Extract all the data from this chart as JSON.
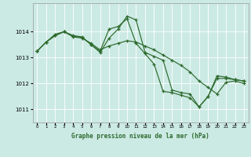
{
  "title": "Graphe pression niveau de la mer (hPa)",
  "bg_color": "#cceae4",
  "line_color": "#2d6a2d",
  "grid_color": "#ffffff",
  "xlim": [
    -0.5,
    23.5
  ],
  "ylim": [
    1010.5,
    1015.1
  ],
  "yticks": [
    1011,
    1012,
    1013,
    1014
  ],
  "xtick_labels": [
    "0",
    "1",
    "2",
    "3",
    "4",
    "5",
    "6",
    "7",
    "8",
    "9",
    "10",
    "11",
    "12",
    "13",
    "14",
    "15",
    "16",
    "17",
    "18",
    "19",
    "20",
    "21",
    "22",
    "23"
  ],
  "series1_x": [
    0,
    1,
    2,
    3,
    4,
    5,
    6,
    7,
    8,
    9,
    10,
    11,
    12,
    13,
    14,
    15,
    16,
    17,
    18,
    19,
    20,
    21,
    22,
    23
  ],
  "series1_y": [
    1013.25,
    1013.6,
    1013.85,
    1014.0,
    1013.85,
    1013.8,
    1013.5,
    1013.25,
    1014.1,
    1014.2,
    1014.5,
    1013.55,
    1013.15,
    1012.75,
    1011.7,
    1011.65,
    1011.55,
    1011.45,
    1011.1,
    1011.5,
    1012.2,
    1012.2,
    1012.15,
    1012.1
  ],
  "series2_x": [
    0,
    1,
    2,
    3,
    4,
    5,
    6,
    7,
    8,
    9,
    10,
    11,
    12,
    13,
    14,
    15,
    16,
    17,
    18,
    19,
    20,
    21,
    22,
    23
  ],
  "series2_y": [
    1013.25,
    1013.6,
    1013.9,
    1014.0,
    1013.82,
    1013.78,
    1013.5,
    1013.2,
    1013.75,
    1014.1,
    1014.6,
    1014.45,
    1013.2,
    1013.05,
    1012.9,
    1011.75,
    1011.65,
    1011.6,
    1011.1,
    1011.5,
    1012.3,
    1012.25,
    1012.15,
    1012.1
  ],
  "series3_x": [
    0,
    1,
    2,
    3,
    4,
    5,
    6,
    7,
    8,
    9,
    10,
    11,
    12,
    13,
    14,
    15,
    16,
    17,
    18,
    19,
    20,
    21,
    22,
    23
  ],
  "series3_y": [
    1013.25,
    1013.6,
    1013.85,
    1014.0,
    1013.8,
    1013.75,
    1013.55,
    1013.3,
    1013.45,
    1013.55,
    1013.65,
    1013.6,
    1013.45,
    1013.3,
    1013.1,
    1012.9,
    1012.7,
    1012.45,
    1012.1,
    1011.85,
    1011.6,
    1012.05,
    1012.1,
    1012.0
  ]
}
